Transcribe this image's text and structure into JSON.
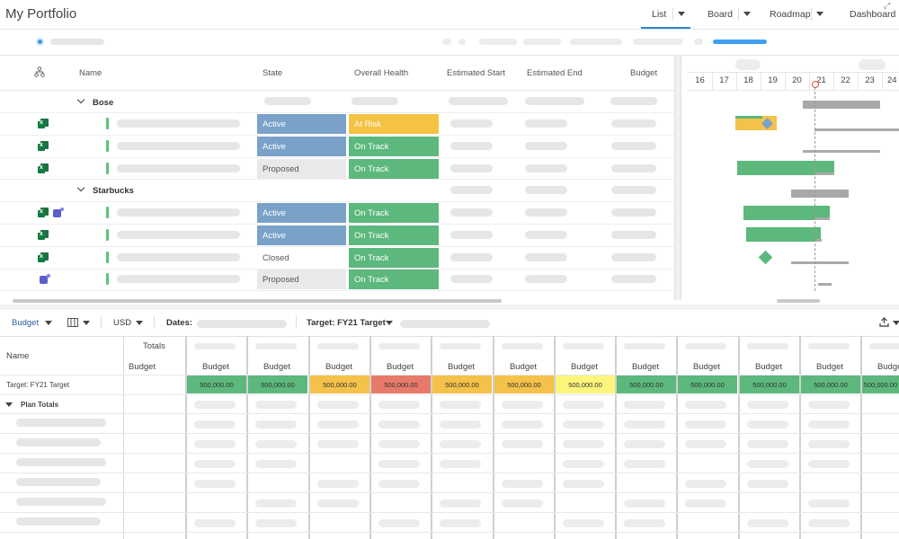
{
  "header": {
    "title": "My Portfolio",
    "views": [
      "List",
      "Board",
      "Roadmap",
      "Dashboard"
    ]
  },
  "grid": {
    "columns": {
      "name": "Name",
      "state": "State",
      "health": "Overall Health",
      "start": "Estimated Start",
      "end": "Estimated End",
      "budget": "Budget"
    },
    "groups": [
      "Bose",
      "Starbucks"
    ],
    "rows": [
      {
        "state": "Active",
        "health": "At Risk"
      },
      {
        "state": "Active",
        "health": "On Track"
      },
      {
        "state": "Proposed",
        "health": "On Track"
      },
      {
        "state": "Active",
        "health": "On Track"
      },
      {
        "state": "Active",
        "health": "On Track"
      },
      {
        "state": "Closed",
        "health": "On Track"
      },
      {
        "state": "Proposed",
        "health": "On Track"
      }
    ]
  },
  "gantt": {
    "days": [
      "16",
      "17",
      "18",
      "19",
      "20",
      "21",
      "22",
      "23",
      "24"
    ]
  },
  "budget_toolbar": {
    "budget_label": "Budget",
    "currency": "USD",
    "dates_label": "Dates:",
    "target_label": "Target: FY21 Target"
  },
  "budget_grid": {
    "name_header": "Name",
    "totals_header": "Totals",
    "budget_header": "Budget",
    "target_row_label": "Target: FY21 Target",
    "plan_totals": "Plan Totals",
    "target_values": [
      "500,000.00",
      "500,000.00",
      "500,000.00",
      "500,000.00",
      "500,000.00",
      "500,000.00",
      "500,000.00",
      "500,000.00",
      "500,000.00",
      "500,000.00",
      "500,000.00",
      "500,000.00"
    ],
    "target_colors": [
      "#5cb87c",
      "#5cb87c",
      "#f4c24a",
      "#e87a6b",
      "#f4c24a",
      "#f4c24a",
      "#fbf57c",
      "#5cb87c",
      "#5cb87c",
      "#5cb87c",
      "#5cb87c",
      "#5cb87c"
    ]
  },
  "colors": {
    "active": "#7aa1c8",
    "on_track": "#5cb87c",
    "at_risk": "#f5c242",
    "accent": "#2a86d1"
  }
}
